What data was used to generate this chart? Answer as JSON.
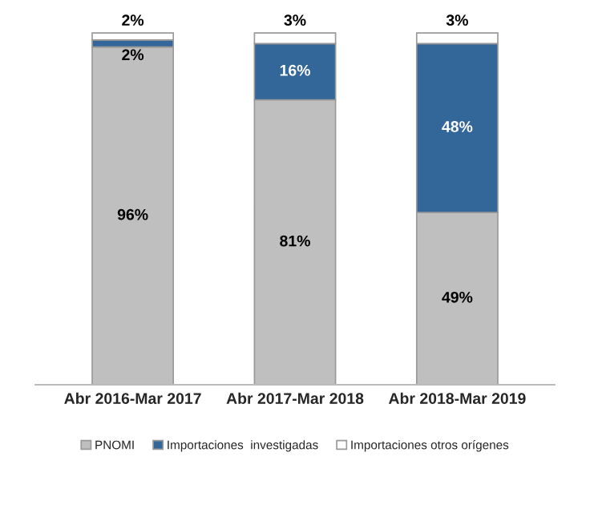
{
  "chart_data": {
    "type": "bar",
    "stacked": true,
    "categories": [
      "Abr 2016-Mar 2017",
      "Abr 2017-Mar 2018",
      "Abr 2018-Mar 2019"
    ],
    "series": [
      {
        "name": "PNOMI",
        "color": "#bfbfbf",
        "values": [
          96,
          81,
          49
        ],
        "value_labels": [
          "96%",
          "81%",
          "49%"
        ]
      },
      {
        "name": "Importaciones  investigadas",
        "color": "#336699",
        "values": [
          2,
          16,
          48
        ],
        "value_labels": [
          "2%",
          "16%",
          "48%"
        ]
      },
      {
        "name": "Importaciones otros orígenes",
        "color": "#ffffff",
        "values": [
          2,
          3,
          3
        ],
        "value_labels": [
          "2%",
          "3%",
          "3%"
        ]
      }
    ],
    "legend": "bottom",
    "grid": false
  }
}
